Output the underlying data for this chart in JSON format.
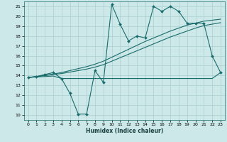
{
  "xlabel": "Humidex (Indice chaleur)",
  "background_color": "#cce8e8",
  "grid_color": "#aacfcf",
  "line_color": "#1a6b6b",
  "xlim": [
    -0.5,
    23.5
  ],
  "ylim": [
    9.5,
    21.5
  ],
  "yticks": [
    10,
    11,
    12,
    13,
    14,
    15,
    16,
    17,
    18,
    19,
    20,
    21
  ],
  "xticks": [
    0,
    1,
    2,
    3,
    4,
    5,
    6,
    7,
    8,
    9,
    10,
    11,
    12,
    13,
    14,
    15,
    16,
    17,
    18,
    19,
    20,
    21,
    22,
    23
  ],
  "line1_x": [
    0,
    1,
    2,
    3,
    4,
    5,
    6,
    7,
    8,
    9,
    10,
    11,
    12,
    13,
    14,
    15,
    16,
    17,
    18,
    19,
    20,
    21,
    22,
    23
  ],
  "line1_y": [
    13.8,
    13.85,
    13.9,
    13.95,
    13.7,
    13.7,
    13.7,
    13.7,
    13.7,
    13.7,
    13.7,
    13.7,
    13.7,
    13.7,
    13.7,
    13.7,
    13.7,
    13.7,
    13.7,
    13.7,
    13.7,
    13.7,
    13.7,
    14.3
  ],
  "line2_x": [
    0,
    1,
    2,
    3,
    4,
    5,
    6,
    7,
    8,
    9,
    10,
    11,
    12,
    13,
    14,
    15,
    16,
    17,
    18,
    19,
    20,
    21,
    22,
    23
  ],
  "line2_y": [
    13.8,
    13.9,
    14.0,
    14.1,
    14.2,
    14.35,
    14.5,
    14.65,
    14.85,
    15.1,
    15.45,
    15.8,
    16.15,
    16.5,
    16.85,
    17.2,
    17.55,
    17.9,
    18.2,
    18.5,
    18.8,
    19.05,
    19.2,
    19.35
  ],
  "line3_x": [
    0,
    1,
    2,
    3,
    4,
    5,
    6,
    7,
    8,
    9,
    10,
    11,
    12,
    13,
    14,
    15,
    16,
    17,
    18,
    19,
    20,
    21,
    22,
    23
  ],
  "line3_y": [
    13.8,
    13.9,
    14.0,
    14.15,
    14.3,
    14.5,
    14.7,
    14.9,
    15.15,
    15.45,
    15.85,
    16.25,
    16.65,
    17.05,
    17.45,
    17.8,
    18.15,
    18.5,
    18.8,
    19.1,
    19.3,
    19.5,
    19.6,
    19.7
  ],
  "line4_x": [
    0,
    1,
    2,
    3,
    4,
    5,
    6,
    7,
    8,
    9,
    10,
    11,
    12,
    13,
    14,
    15,
    16,
    17,
    18,
    19,
    20,
    21,
    22,
    23
  ],
  "line4_y": [
    13.8,
    13.9,
    14.1,
    14.3,
    13.7,
    12.2,
    10.1,
    10.1,
    14.5,
    13.3,
    21.2,
    19.2,
    17.5,
    18.0,
    17.8,
    21.0,
    20.5,
    21.0,
    20.5,
    19.3,
    19.3,
    19.3,
    16.0,
    14.3
  ]
}
